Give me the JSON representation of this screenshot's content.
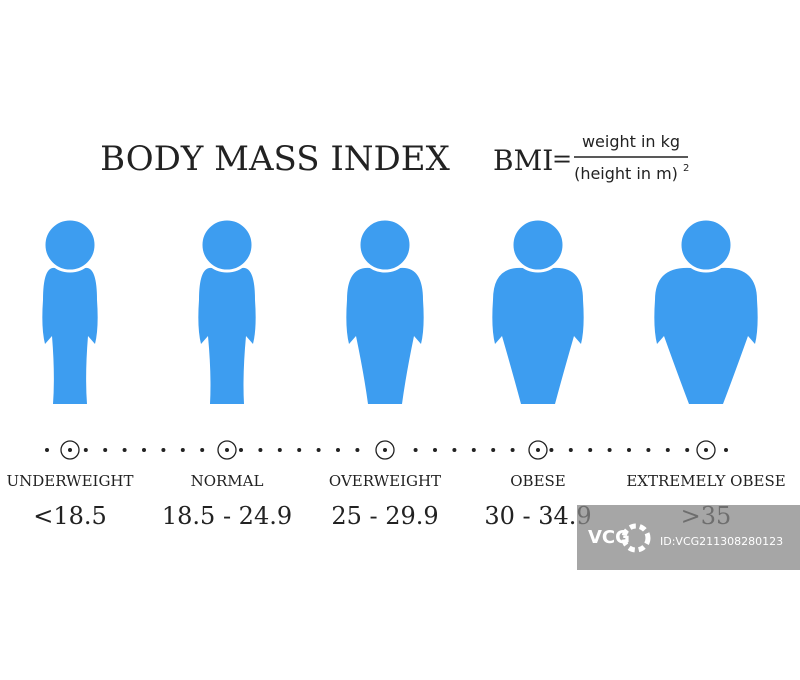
{
  "header": {
    "title": "BODY MASS INDEX",
    "formula": {
      "lhs": "BMI",
      "equals": "=",
      "numerator": "weight in kg",
      "denominator": "(height in m)",
      "exponent": "2"
    }
  },
  "categories": [
    {
      "label": "UNDERWEIGHT",
      "range": "<18.5"
    },
    {
      "label": "NORMAL",
      "range": "18.5 - 24.9"
    },
    {
      "label": "OVERWEIGHT",
      "range": "25 - 29.9"
    },
    {
      "label": "OBESE",
      "range": "30 - 34.9"
    },
    {
      "label": "EXTREMELY OBESE",
      "range": ">35"
    }
  ],
  "watermark": {
    "logo": "VCG",
    "id": "ID:VCG211308280123"
  }
}
